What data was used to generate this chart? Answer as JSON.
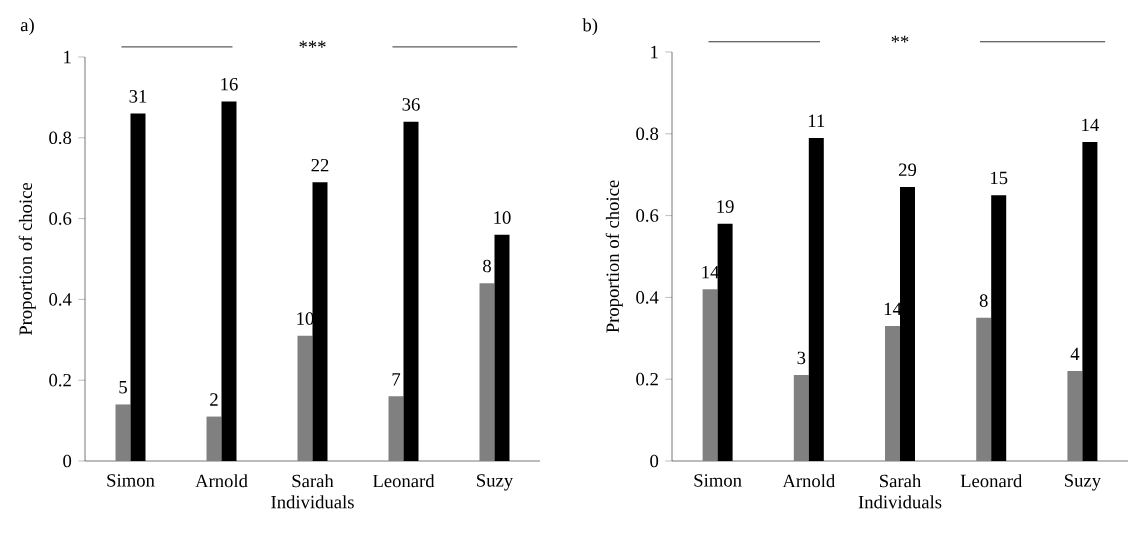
{
  "chart_data": [
    {
      "type": "bar",
      "xlabel": "Individuals",
      "ylabel": "Proportion of choice",
      "categories": [
        "Simon",
        "Arnold",
        "Sarah",
        "Leonard",
        "Suzy"
      ],
      "series": [
        {
          "color": "#808080",
          "values": [
            0.14,
            0.11,
            0.31,
            0.16,
            0.44
          ]
        },
        {
          "color": "#000000",
          "values": [
            0.86,
            0.89,
            0.69,
            0.84,
            0.56
          ]
        }
      ],
      "annotations": [
        "a)",
        "***",
        {
          "text": "5",
          "x": "Simon",
          "y": 0.14
        },
        {
          "text": "2",
          "x": "Arnold",
          "y": 0.11
        },
        {
          "text": "10",
          "x": "Sarah",
          "y": 0.31
        },
        {
          "text": "7",
          "x": "Leonard",
          "y": 0.16
        },
        {
          "text": "8",
          "x": "Suzy",
          "y": 0.44
        },
        {
          "text": "31",
          "x": "Simon",
          "y": 0.86
        },
        {
          "text": "16",
          "x": "Arnold",
          "y": 0.89
        },
        {
          "text": "22",
          "x": "Sarah",
          "y": 0.69
        },
        {
          "text": "36",
          "x": "Leonard",
          "y": 0.84
        },
        {
          "text": "10",
          "x": "Suzy",
          "y": 0.56
        }
      ],
      "ylim": [
        0,
        1
      ],
      "yticks": [
        0,
        0.2,
        0.4,
        0.6,
        0.8,
        1
      ],
      "grid": false
    },
    {
      "type": "bar",
      "xlabel": "Individuals",
      "ylabel": "Proportion of choice",
      "categories": [
        "Simon",
        "Arnold",
        "Sarah",
        "Leonard",
        "Suzy"
      ],
      "series": [
        {
          "color": "#808080",
          "values": [
            0.42,
            0.21,
            0.33,
            0.35,
            0.22
          ]
        },
        {
          "color": "#000000",
          "values": [
            0.58,
            0.79,
            0.67,
            0.65,
            0.78
          ]
        }
      ],
      "annotations": [
        "b)",
        "**",
        {
          "text": "14",
          "x": "Simon",
          "y": 0.42
        },
        {
          "text": "3",
          "x": "Arnold",
          "y": 0.21
        },
        {
          "text": "14",
          "x": "Sarah",
          "y": 0.33
        },
        {
          "text": "8",
          "x": "Leonard",
          "y": 0.35
        },
        {
          "text": "4",
          "x": "Suzy",
          "y": 0.22
        },
        {
          "text": "19",
          "x": "Simon",
          "y": 0.58
        },
        {
          "text": "11",
          "x": "Arnold",
          "y": 0.79
        },
        {
          "text": "29",
          "x": "Sarah",
          "y": 0.67
        },
        {
          "text": "15",
          "x": "Leonard",
          "y": 0.65
        },
        {
          "text": "14",
          "x": "Suzy",
          "y": 0.78
        }
      ],
      "ylim": [
        0,
        1
      ],
      "yticks": [
        0,
        0.2,
        0.4,
        0.6,
        0.8,
        1
      ],
      "grid": false
    }
  ]
}
